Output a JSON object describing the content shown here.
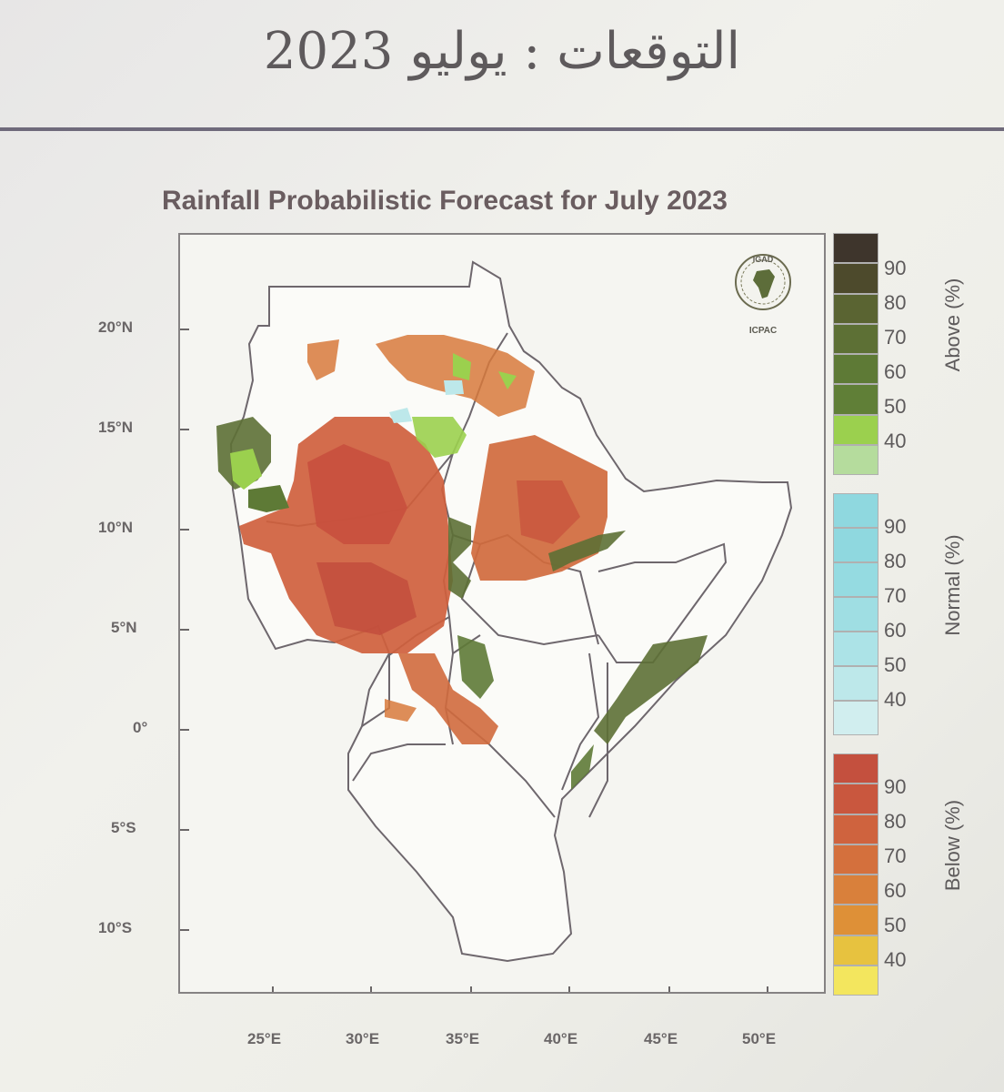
{
  "slide": {
    "title": "التوقعات : يوليو 2023"
  },
  "map": {
    "title": "Rainfall Probabilistic Forecast for July 2023",
    "lat_labels": [
      "20°N",
      "15°N",
      "10°N",
      "5°N",
      "0°",
      "5°S",
      "10°S"
    ],
    "lon_labels": [
      "25°E",
      "30°E",
      "35°E",
      "40°E",
      "45°E",
      "50°E"
    ],
    "logo": {
      "top_text": "IGAD",
      "bottom_text": "ICPAC",
      "icon": "africa-map-icon"
    }
  },
  "legend": {
    "above": {
      "title": "Above (%)",
      "levels": [
        "90",
        "80",
        "70",
        "60",
        "50",
        "40"
      ],
      "colors": [
        "#3e352c",
        "#4d4a2c",
        "#5a6432",
        "#5d7035",
        "#5e7a36",
        "#607f37",
        "#9bd04e",
        "#b5dc9d"
      ]
    },
    "normal": {
      "title": "Normal (%)",
      "levels": [
        "90",
        "80",
        "70",
        "60",
        "50",
        "40"
      ],
      "colors": [
        "#8fd8df",
        "#8fd8df",
        "#95dbe1",
        "#9fdee3",
        "#ace3e7",
        "#bde8ea",
        "#d1eeef"
      ]
    },
    "below": {
      "title": "Below (%)",
      "levels": [
        "90",
        "80",
        "70",
        "60",
        "50",
        "40"
      ],
      "colors": [
        "#c4503e",
        "#c9573e",
        "#cf633e",
        "#d4703d",
        "#d9803b",
        "#de9037",
        "#e7c23f",
        "#f3e65e"
      ]
    }
  }
}
